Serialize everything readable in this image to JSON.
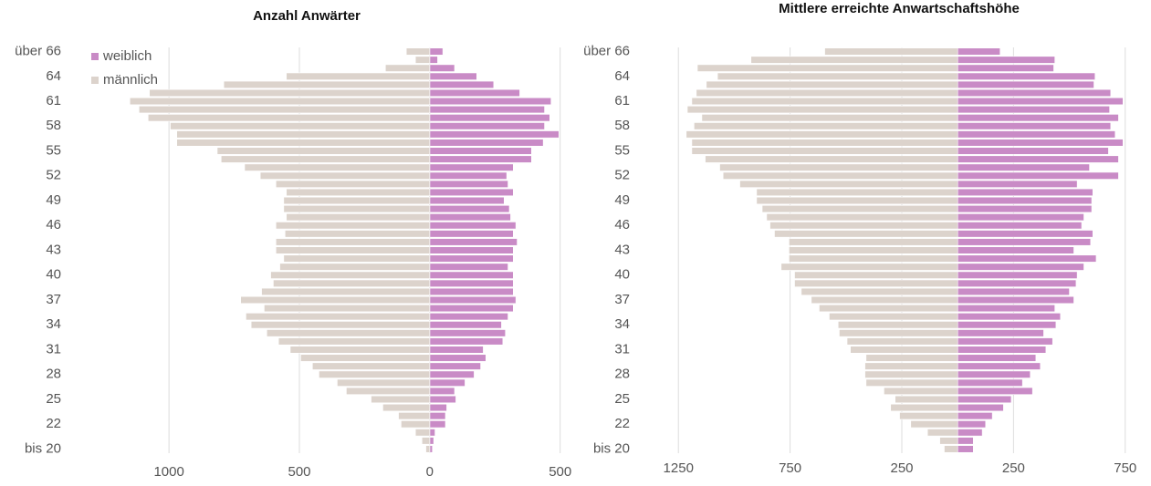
{
  "chart_data": [
    {
      "type": "pyramid",
      "title": "Anzahl Anwärter",
      "categories": [
        "bis 20",
        null,
        null,
        "22",
        null,
        null,
        "25",
        null,
        null,
        "28",
        null,
        null,
        "31",
        null,
        null,
        "34",
        null,
        null,
        "37",
        null,
        null,
        "40",
        null,
        null,
        "43",
        null,
        null,
        "46",
        null,
        null,
        "49",
        null,
        null,
        "52",
        null,
        null,
        "55",
        null,
        null,
        "58",
        null,
        null,
        "61",
        null,
        null,
        "64",
        null,
        null,
        "über 66"
      ],
      "series": [
        {
          "name": "weiblich",
          "color": "#c98bc6",
          "values": [
            10,
            15,
            20,
            60,
            60,
            65,
            100,
            95,
            135,
            170,
            195,
            215,
            205,
            280,
            290,
            275,
            300,
            320,
            330,
            320,
            320,
            320,
            300,
            320,
            320,
            335,
            320,
            330,
            310,
            305,
            285,
            320,
            300,
            295,
            320,
            390,
            390,
            435,
            495,
            440,
            460,
            440,
            465,
            345,
            245,
            180,
            95,
            30,
            50
          ]
        },
        {
          "name": "männlich",
          "color": "#dcd3cc",
          "values": [
            -15,
            -30,
            -55,
            -110,
            -120,
            -180,
            -225,
            -320,
            -355,
            -425,
            -450,
            -495,
            -535,
            -580,
            -625,
            -685,
            -705,
            -635,
            -725,
            -645,
            -600,
            -610,
            -575,
            -560,
            -590,
            -590,
            -555,
            -590,
            -550,
            -560,
            -560,
            -550,
            -590,
            -650,
            -710,
            -800,
            -815,
            -970,
            -970,
            -995,
            -1080,
            -1115,
            -1150,
            -1075,
            -790,
            -550,
            -170,
            -55,
            -90
          ]
        }
      ],
      "xlim": [
        -1200,
        550
      ],
      "xticks": [
        {
          "value": -1000,
          "label": "1000"
        },
        {
          "value": -500,
          "label": "500"
        },
        0,
        500
      ],
      "grid": true,
      "legend": "top-left"
    },
    {
      "type": "pyramid",
      "title": "Mittlere erreichte Anwartschaftshöhe",
      "categories": [
        "bis 20",
        null,
        null,
        "22",
        null,
        null,
        "25",
        null,
        null,
        "28",
        null,
        null,
        "31",
        null,
        null,
        "34",
        null,
        null,
        "37",
        null,
        null,
        "40",
        null,
        null,
        "43",
        null,
        null,
        "46",
        null,
        null,
        "49",
        null,
        null,
        "52",
        null,
        null,
        "55",
        null,
        null,
        "58",
        null,
        null,
        "61",
        null,
        null,
        "64",
        null,
        null,
        "über 66"
      ],
      "series": [
        {
          "color": "#c98bc6",
          "values": [
            70,
            70,
            110,
            125,
            155,
            205,
            240,
            335,
            290,
            325,
            370,
            350,
            395,
            425,
            385,
            440,
            460,
            435,
            520,
            500,
            530,
            535,
            565,
            620,
            520,
            595,
            605,
            555,
            565,
            600,
            600,
            605,
            535,
            720,
            590,
            720,
            675,
            740,
            705,
            685,
            720,
            680,
            740,
            685,
            610,
            615,
            430,
            435,
            190
          ]
        },
        {
          "color": "#dcd3cc",
          "values": [
            -60,
            -80,
            -135,
            -210,
            -260,
            -300,
            -280,
            -330,
            -410,
            -415,
            -415,
            -410,
            -480,
            -495,
            -530,
            -535,
            -575,
            -620,
            -655,
            -700,
            -730,
            -730,
            -790,
            -755,
            -755,
            -755,
            -820,
            -840,
            -855,
            -875,
            -900,
            -900,
            -975,
            -1050,
            -1065,
            -1130,
            -1190,
            -1190,
            -1215,
            -1180,
            -1145,
            -1210,
            -1190,
            -1170,
            -1125,
            -1075,
            -1165,
            -925,
            -595
          ]
        }
      ],
      "xlim": [
        -1300,
        800
      ],
      "xticks": [
        {
          "value": -1250,
          "label": "1250"
        },
        {
          "value": -750,
          "label": "750"
        },
        {
          "value": -250,
          "label": "250"
        },
        250,
        750
      ],
      "grid": true
    }
  ]
}
